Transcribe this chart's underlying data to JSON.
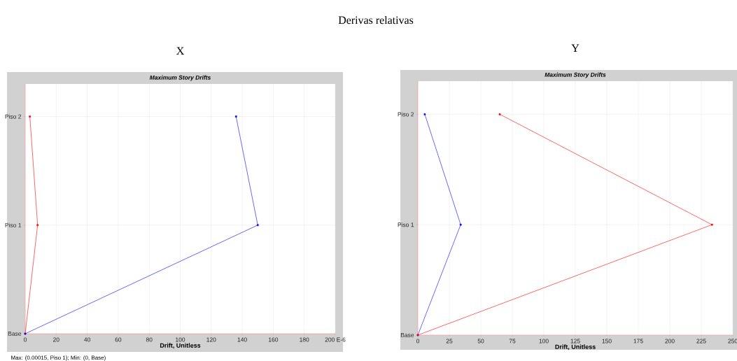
{
  "chart_data": [
    {
      "type": "line",
      "orientation": "horizontal",
      "title": "Maximum Story Drifts",
      "subtitle": "X",
      "xlabel": "Drift, Unitless",
      "annotations": [
        "Derivas relativas",
        "Max: (0.00015, Piso 1);  Min: (0, Base)"
      ],
      "categories": [
        "Piso 2",
        "Piso 1",
        "Base"
      ],
      "series": [
        {
          "color": "#ff0000",
          "values": [
            3,
            8,
            0
          ]
        },
        {
          "color": "#0000ff",
          "values": [
            136,
            150,
            0
          ]
        }
      ],
      "xlim": [
        0,
        200
      ],
      "xticks": [
        0,
        20,
        40,
        60,
        80,
        100,
        120,
        140,
        160,
        180,
        {
          "value": 200,
          "label": "200 E-6"
        }
      ],
      "grid": true,
      "marker": "square",
      "line_style": "solid"
    },
    {
      "type": "line",
      "orientation": "horizontal",
      "title": "Maximum Story Drifts",
      "subtitle": "Y",
      "xlabel": "Drift, Unitless",
      "categories": [
        "Piso 2",
        "Piso 1",
        "Base"
      ],
      "series": [
        {
          "color": "#0000ff",
          "values": [
            5.5,
            34,
            0
          ]
        },
        {
          "color": "#ff0000",
          "values": [
            65,
            233.5,
            0
          ]
        }
      ],
      "xlim": [
        0,
        250
      ],
      "xticks": [
        0,
        25,
        50,
        75,
        100,
        125,
        150,
        175,
        200,
        225,
        250
      ],
      "grid": true,
      "marker": "square",
      "line_style": "solid"
    }
  ]
}
